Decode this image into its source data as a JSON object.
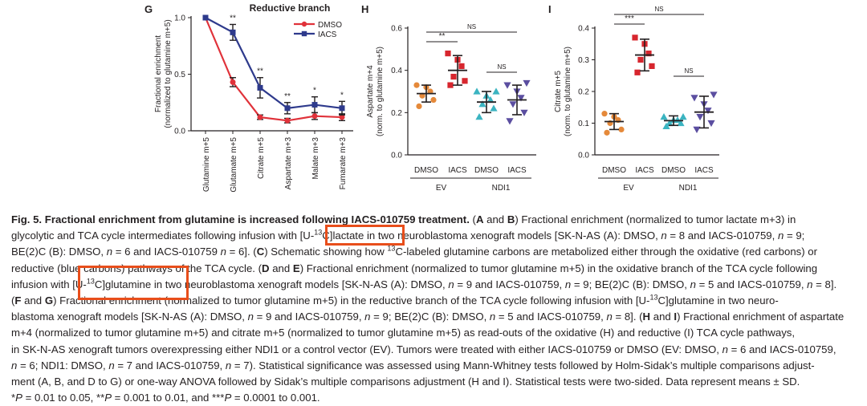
{
  "chart_data": [
    {
      "panel": "G",
      "type": "line",
      "title": "Reductive branch",
      "ylabel_1": "Fractional enrichment",
      "ylabel_2": "(normalized to glutamine m+5)",
      "ylim": [
        0,
        1.0
      ],
      "yticks": [
        0,
        0.5,
        1.0
      ],
      "ytick_labels": [
        "0.0",
        "0.5",
        "1.0"
      ],
      "categories": [
        "Glutamine m+5",
        "Glutamate m+5",
        "Citrate m+5",
        "Aspartate m+3",
        "Malate m+3",
        "Fumarate m+3"
      ],
      "series": [
        {
          "name": "DMSO",
          "color": "#e0323a",
          "marker": "circle",
          "values": [
            1.0,
            0.43,
            0.12,
            0.09,
            0.13,
            0.12
          ],
          "err": [
            0,
            0.04,
            0.02,
            0.02,
            0.03,
            0.03
          ]
        },
        {
          "name": "IACS",
          "color": "#2e3a8c",
          "marker": "square",
          "values": [
            1.0,
            0.87,
            0.38,
            0.2,
            0.23,
            0.2
          ],
          "err": [
            0,
            0.07,
            0.09,
            0.05,
            0.07,
            0.06
          ]
        }
      ],
      "significance": [
        "",
        "**",
        "**",
        "**",
        "*",
        "*"
      ],
      "legend": "top-right"
    },
    {
      "panel": "H",
      "type": "scatter",
      "ylabel_1": "Aspartate m+4",
      "ylabel_2": "(norm. to glutamine m+5)",
      "ylim": [
        0,
        0.6
      ],
      "yticks": [
        0,
        0.2,
        0.4,
        0.6
      ],
      "ytick_labels": [
        "0.0",
        "0.2",
        "0.4",
        "0.6"
      ],
      "groups": [
        {
          "label": "DMSO",
          "color": "#e5893a",
          "marker": "circle",
          "mean": 0.29,
          "sd": 0.04,
          "points": [
            0.23,
            0.26,
            0.28,
            0.3,
            0.32,
            0.33
          ]
        },
        {
          "label": "IACS",
          "color": "#d7262e",
          "marker": "square",
          "mean": 0.4,
          "sd": 0.07,
          "points": [
            0.33,
            0.35,
            0.37,
            0.42,
            0.45,
            0.48
          ]
        },
        {
          "label": "DMSO",
          "color": "#3bb4c1",
          "marker": "triangle-up",
          "mean": 0.25,
          "sd": 0.05,
          "points": [
            0.18,
            0.22,
            0.24,
            0.26,
            0.28,
            0.3,
            0.3
          ]
        },
        {
          "label": "IACS",
          "color": "#5b4ea0",
          "marker": "triangle-down",
          "mean": 0.26,
          "sd": 0.07,
          "points": [
            0.16,
            0.2,
            0.24,
            0.27,
            0.3,
            0.33,
            0.34
          ]
        }
      ],
      "group_labels": [
        "EV",
        "NDI1"
      ],
      "brackets": [
        {
          "from": 0,
          "to": 1,
          "label": "**"
        },
        {
          "from": 0,
          "to": 3,
          "label": "NS"
        },
        {
          "from": 2,
          "to": 3,
          "label": "NS"
        }
      ]
    },
    {
      "panel": "I",
      "type": "scatter",
      "ylabel_1": "Citrate m+5",
      "ylabel_2": "(norm. to glutamine m+5)",
      "ylim": [
        0,
        0.4
      ],
      "yticks": [
        0,
        0.1,
        0.2,
        0.3,
        0.4
      ],
      "ytick_labels": [
        "0.0",
        "0.1",
        "0.2",
        "0.3",
        "0.4"
      ],
      "groups": [
        {
          "label": "DMSO",
          "color": "#e5893a",
          "marker": "circle",
          "mean": 0.105,
          "sd": 0.025,
          "points": [
            0.07,
            0.08,
            0.1,
            0.11,
            0.12,
            0.13
          ]
        },
        {
          "label": "IACS",
          "color": "#d7262e",
          "marker": "square",
          "mean": 0.315,
          "sd": 0.05,
          "points": [
            0.26,
            0.28,
            0.3,
            0.32,
            0.35,
            0.37
          ]
        },
        {
          "label": "DMSO",
          "color": "#3bb4c1",
          "marker": "triangle-up",
          "mean": 0.108,
          "sd": 0.015,
          "points": [
            0.09,
            0.1,
            0.1,
            0.11,
            0.11,
            0.12,
            0.12
          ]
        },
        {
          "label": "IACS",
          "color": "#5b4ea0",
          "marker": "triangle-down",
          "mean": 0.135,
          "sd": 0.05,
          "points": [
            0.08,
            0.1,
            0.12,
            0.14,
            0.16,
            0.18,
            0.19
          ]
        }
      ],
      "group_labels": [
        "EV",
        "NDI1"
      ],
      "brackets": [
        {
          "from": 0,
          "to": 1,
          "label": "***"
        },
        {
          "from": 0,
          "to": 3,
          "label": "NS"
        },
        {
          "from": 2,
          "to": 3,
          "label": "NS"
        }
      ]
    }
  ],
  "caption": {
    "lines": [
      [
        {
          "t": "Fig. 5. Fractional enrichment from glutamine is increased following IACS-010759 treatment.",
          "b": true
        },
        {
          "t": " ("
        },
        {
          "t": "A",
          "b": true
        },
        {
          "t": " and "
        },
        {
          "t": "B",
          "b": true
        },
        {
          "t": ") Fractional enrichment (normalized to tumor lactate m+3) in"
        }
      ],
      [
        {
          "t": "glycolytic and TCA cycle intermediates following infusion with [U-"
        },
        {
          "t": "13",
          "sup": true
        },
        {
          "t": "C]lactate in two neuroblastoma xenograft models [SK-N-AS (A): DMSO, "
        },
        {
          "t": "n",
          "i": true
        },
        {
          "t": " = 8 and IACS-010759, "
        },
        {
          "t": "n",
          "i": true
        },
        {
          "t": " = 9;"
        }
      ],
      [
        {
          "t": "BE(2)C (B): DMSO, "
        },
        {
          "t": "n",
          "i": true
        },
        {
          "t": " = 6 and IACS-010759 "
        },
        {
          "t": "n",
          "i": true
        },
        {
          "t": " = 6]. ("
        },
        {
          "t": "C",
          "b": true
        },
        {
          "t": ") Schematic showing how "
        },
        {
          "t": "13",
          "sup": true
        },
        {
          "t": "C-labeled glutamine carbons are metabolized either through the oxidative (red carbons) or"
        }
      ],
      [
        {
          "t": "reductive (blue carbons) pathways of the TCA cycle. ("
        },
        {
          "t": "D",
          "b": true
        },
        {
          "t": " and "
        },
        {
          "t": "E",
          "b": true
        },
        {
          "t": ") Fractional enrichment (normalized to tumor glutamine m+5) in the oxidative branch of the TCA cycle following"
        }
      ],
      [
        {
          "t": "infusion with [U-"
        },
        {
          "t": "13",
          "sup": true
        },
        {
          "t": "C]glutamine in two neuroblastoma xenograft models [SK-N-AS (A): DMSO, "
        },
        {
          "t": "n",
          "i": true
        },
        {
          "t": " = 9 and IACS-010759, "
        },
        {
          "t": "n",
          "i": true
        },
        {
          "t": " = 9; BE(2)C (B): DMSO, "
        },
        {
          "t": "n",
          "i": true
        },
        {
          "t": " = 5 and IACS-010759, "
        },
        {
          "t": "n",
          "i": true
        },
        {
          "t": " = 8]."
        }
      ],
      [
        {
          "t": "("
        },
        {
          "t": "F",
          "b": true
        },
        {
          "t": " and "
        },
        {
          "t": "G",
          "b": true
        },
        {
          "t": ") Fractional enrichment (normalized to tumor glutamine m+5) in the reductive branch of the TCA cycle following infusion with [U-"
        },
        {
          "t": "13",
          "sup": true
        },
        {
          "t": "C]glutamine in two neuro-"
        }
      ],
      [
        {
          "t": "blastoma xenograft models [SK-N-AS (A): DMSO, "
        },
        {
          "t": "n",
          "i": true
        },
        {
          "t": " = 9 and IACS-010759, "
        },
        {
          "t": "n",
          "i": true
        },
        {
          "t": " = 9; BE(2)C (B): DMSO, "
        },
        {
          "t": "n",
          "i": true
        },
        {
          "t": " = 5 and IACS-010759, "
        },
        {
          "t": "n",
          "i": true
        },
        {
          "t": " = 8]. ("
        },
        {
          "t": "H",
          "b": true
        },
        {
          "t": " and "
        },
        {
          "t": "I",
          "b": true
        },
        {
          "t": ") Fractional enrichment of aspartate"
        }
      ],
      [
        {
          "t": "m+4 (normalized to tumor glutamine m+5) and citrate m+5 (normalized to tumor glutamine m+5) as read-outs of the oxidative (H) and reductive (I) TCA cycle pathways,"
        }
      ],
      [
        {
          "t": "in SK-N-AS xenograft tumors overexpressing either NDI1 or a control vector (EV). Tumors were treated with either IACS-010759 or DMSO (EV: DMSO, "
        },
        {
          "t": "n",
          "i": true
        },
        {
          "t": " = 6 and IACS-010759,"
        }
      ],
      [
        {
          "t": "n",
          "i": true
        },
        {
          "t": " = 6; NDI1: DMSO, "
        },
        {
          "t": "n",
          "i": true
        },
        {
          "t": " = 7 and IACS-010759, "
        },
        {
          "t": "n",
          "i": true
        },
        {
          "t": " = 7). Statistical significance was assessed using Mann-Whitney tests followed by Holm-Sidak’s multiple comparisons adjust-"
        }
      ],
      [
        {
          "t": "ment (A, B, and D to G) or one-way ANOVA followed by Sidak’s multiple comparisons adjustment (H and I). Statistical tests were two-sided. Data represent means ± SD."
        }
      ],
      [
        {
          "t": "*"
        },
        {
          "t": "P",
          "i": true
        },
        {
          "t": " = 0.01 to 0.05, **"
        },
        {
          "t": "P",
          "i": true
        },
        {
          "t": " = 0.001 to 0.01, and ***"
        },
        {
          "t": "P",
          "i": true
        },
        {
          "t": " = 0.0001 to 0.001."
        }
      ]
    ]
  },
  "colors": {
    "highlight_box": "#e84e1b"
  }
}
